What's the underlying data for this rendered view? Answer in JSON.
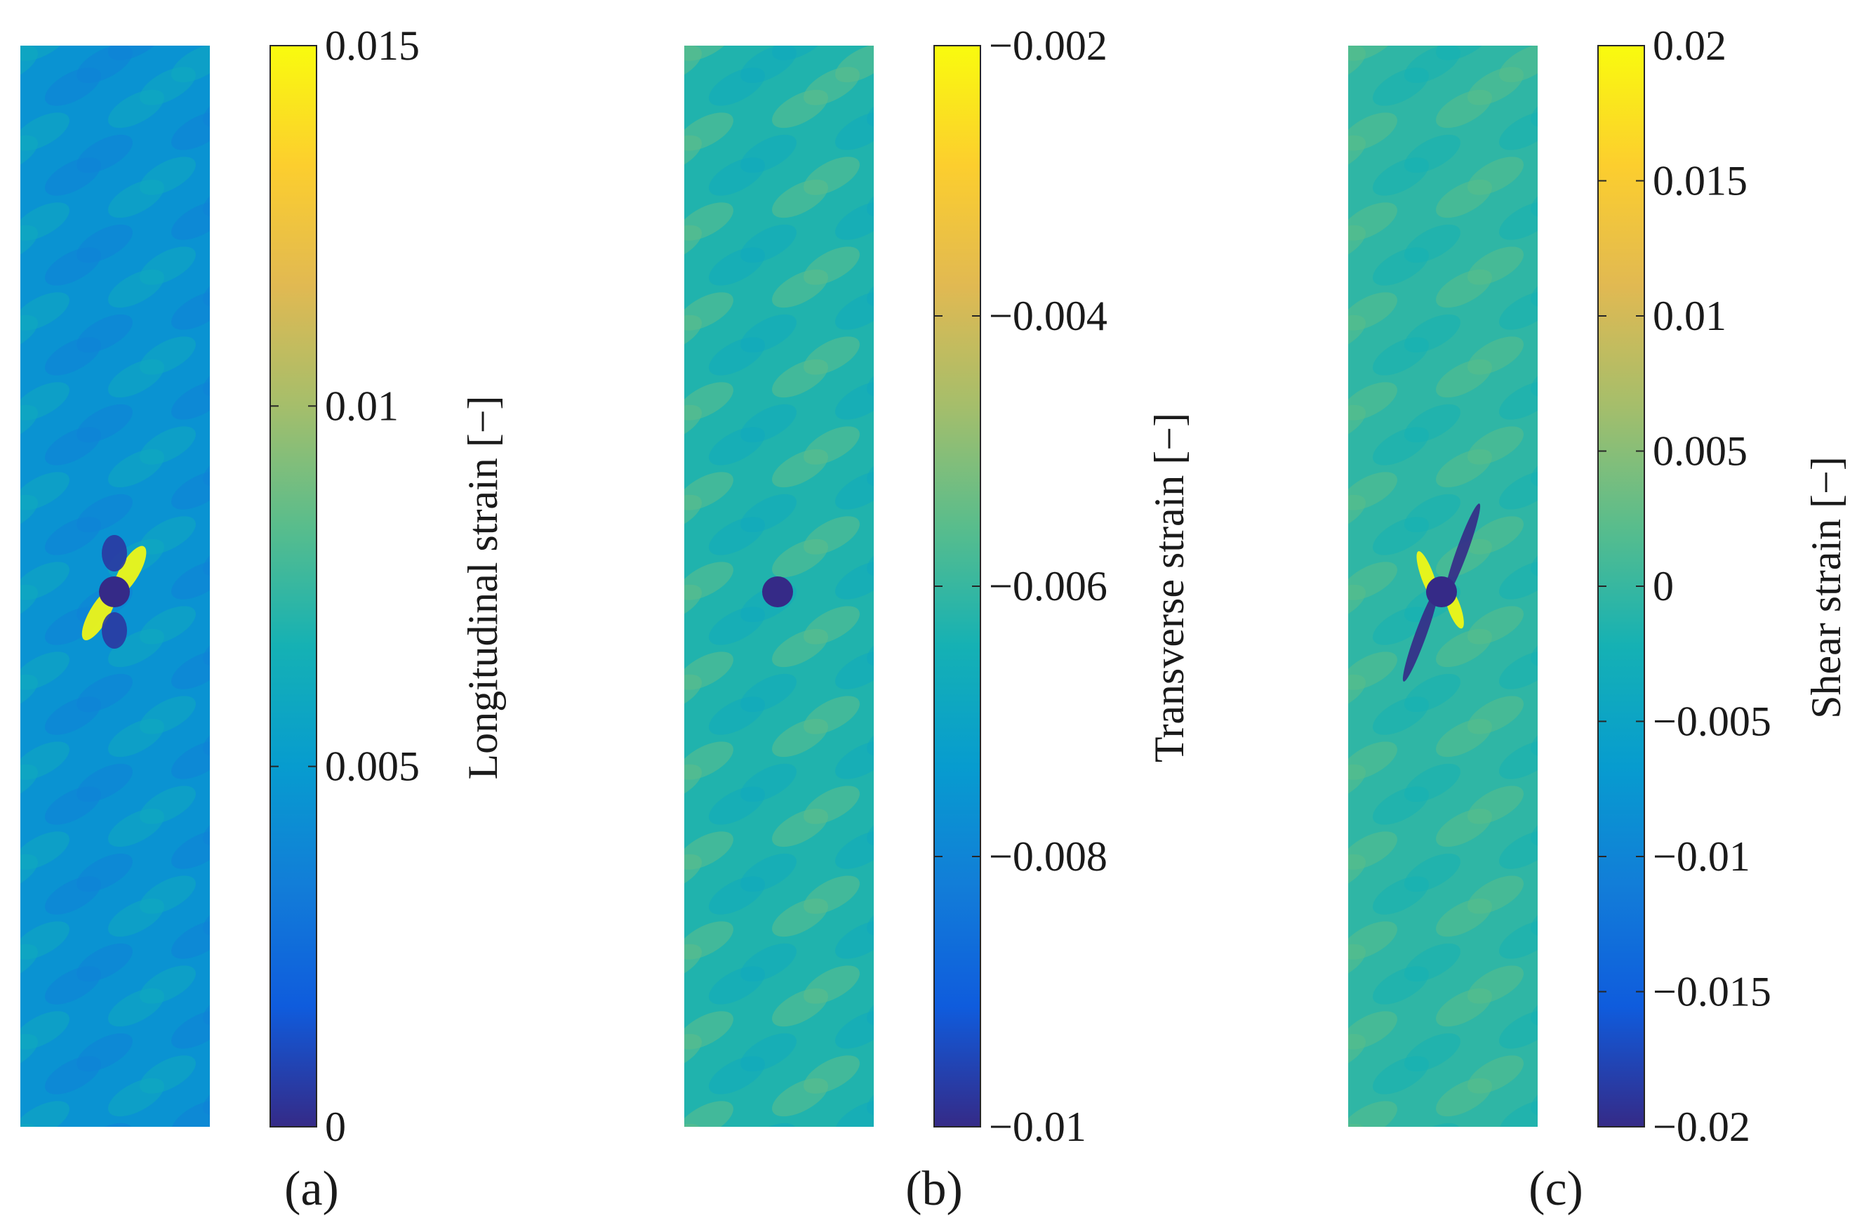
{
  "figure": {
    "panels": [
      {
        "letter": "a",
        "label_text": "(a)"
      },
      {
        "letter": "b",
        "label_text": "(b)"
      },
      {
        "letter": "c",
        "label_text": "(c)"
      }
    ]
  },
  "chart_data": [
    {
      "type": "heatmap",
      "title": "",
      "colormap": "parula",
      "colorbar_label": "Longitudinal strain [−]",
      "clim": [
        0,
        0.015
      ],
      "ticks": [
        0,
        0.005,
        0.01,
        0.015
      ],
      "tick_labels": [
        "0",
        "0.005",
        "0.01",
        "0.015"
      ],
      "background_value": 0.0045,
      "pattern_amplitude": 0.0016,
      "hole_value": 0,
      "hotspots": [
        {
          "name": "hotspot-upper-right",
          "value": 0.015
        },
        {
          "name": "hotspot-lower-left",
          "value": 0.015
        },
        {
          "name": "lowstrain-above-hole",
          "value": 0.0005
        },
        {
          "name": "lowstrain-below-hole",
          "value": 0.0005
        }
      ]
    },
    {
      "type": "heatmap",
      "title": "",
      "colormap": "parula",
      "colorbar_label": "Transverse strain [−]",
      "clim": [
        -0.01,
        -0.002
      ],
      "ticks": [
        -0.01,
        -0.008,
        -0.006,
        -0.004,
        -0.002
      ],
      "tick_labels": [
        "−0.01",
        "−0.008",
        "−0.006",
        "−0.004",
        "−0.002"
      ],
      "background_value": -0.0063,
      "pattern_amplitude": 0.0008,
      "hole_value": -0.01,
      "hotspots": []
    },
    {
      "type": "heatmap",
      "title": "",
      "colormap": "parula",
      "colorbar_label": "Shear strain [−]",
      "clim": [
        -0.02,
        0.02
      ],
      "ticks": [
        -0.02,
        -0.015,
        -0.01,
        -0.005,
        0,
        0.005,
        0.01,
        0.015,
        0.02
      ],
      "tick_labels": [
        "−0.02",
        "−0.015",
        "−0.01",
        "−0.005",
        "0",
        "0.005",
        "0.01",
        "0.015",
        "0.02"
      ],
      "background_value": -0.0005,
      "pattern_amplitude": 0.0028,
      "hole_value": -0.02,
      "hotspots": [
        {
          "name": "hotspot-upper-left",
          "value": 0.02
        },
        {
          "name": "hotspot-lower-right",
          "value": 0.02
        },
        {
          "name": "lowstrain-upper-right",
          "value": -0.02
        },
        {
          "name": "lowstrain-lower-left",
          "value": -0.02
        }
      ]
    }
  ]
}
